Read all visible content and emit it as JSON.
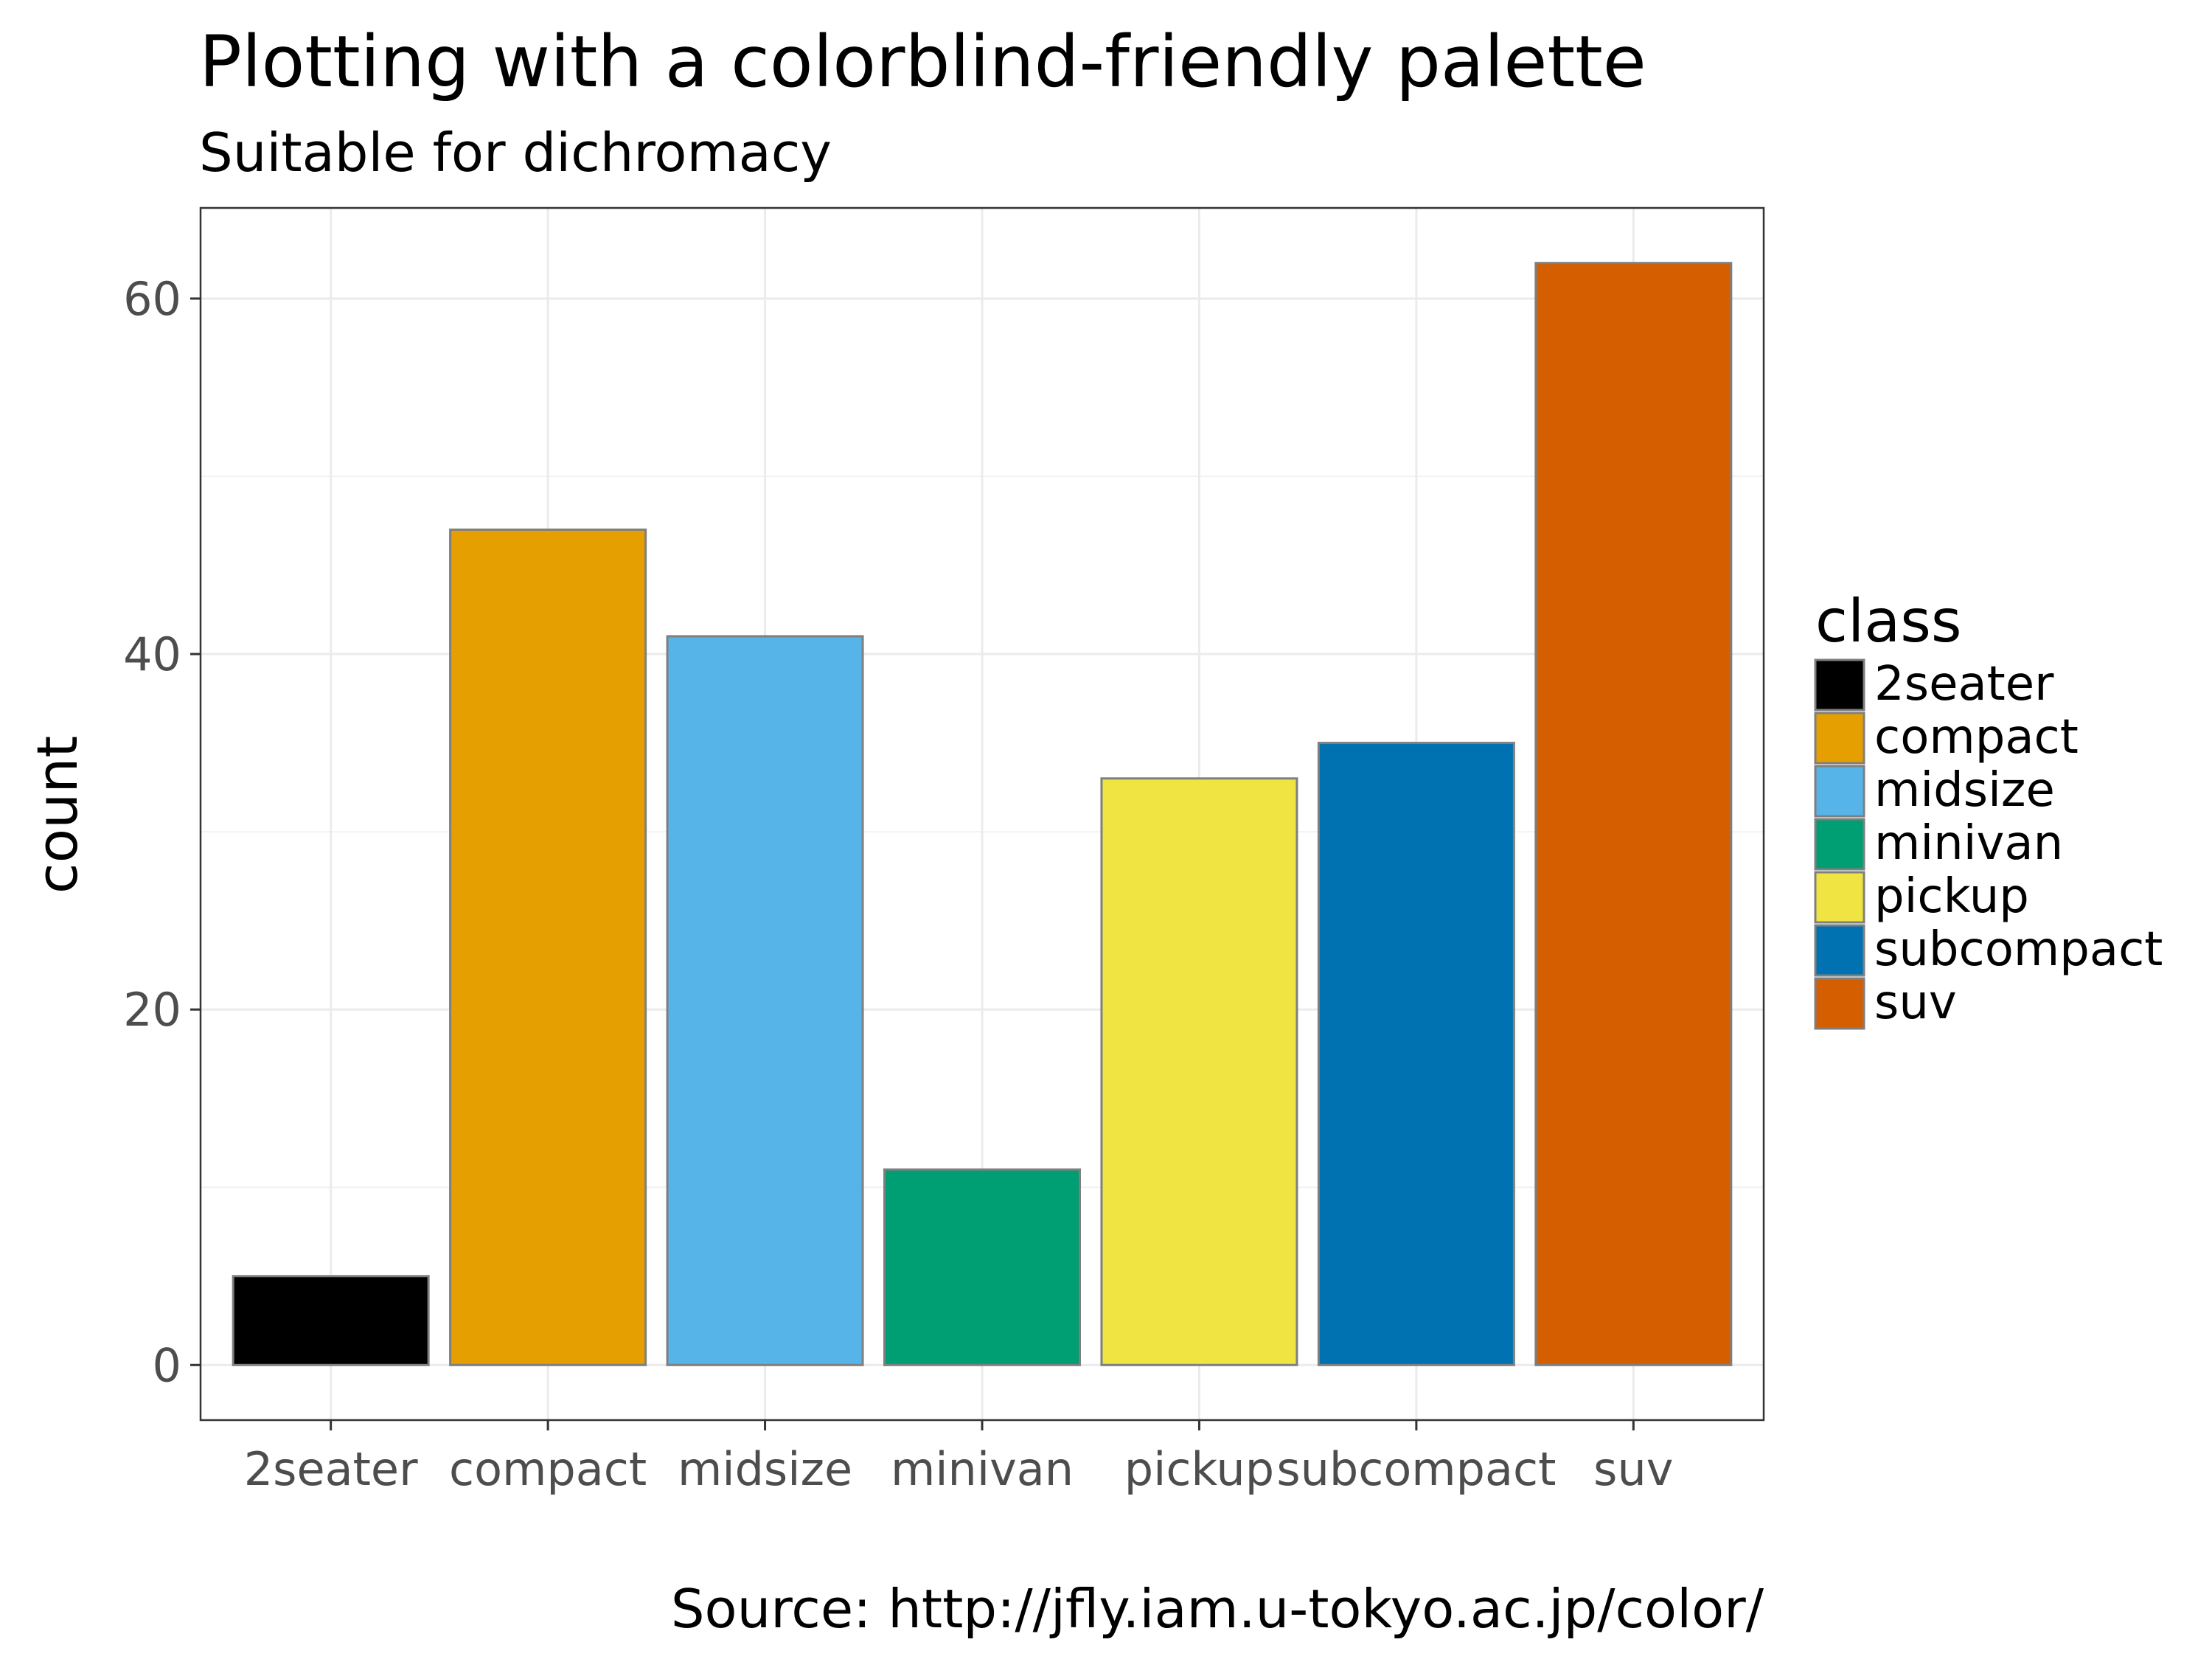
{
  "chart_data": {
    "type": "bar",
    "title": "Plotting with a colorblind-friendly palette",
    "subtitle": "Suitable for dichromacy",
    "caption": "Source: http://jfly.iam.u-tokyo.ac.jp/color/",
    "xlabel": "",
    "ylabel": "count",
    "categories": [
      "2seater",
      "compact",
      "midsize",
      "minivan",
      "pickup",
      "subcompact",
      "suv"
    ],
    "values": [
      5,
      47,
      41,
      11,
      33,
      35,
      62
    ],
    "colors": [
      "#000000",
      "#E69F00",
      "#56B4E9",
      "#009E73",
      "#F0E442",
      "#0072B2",
      "#D55E00"
    ],
    "yticks": [
      0,
      20,
      40,
      60
    ],
    "ylim": [
      -3.1,
      65.1
    ],
    "grid": true,
    "legend": {
      "title": "class",
      "position": "right",
      "entries": [
        "2seater",
        "compact",
        "midsize",
        "minivan",
        "pickup",
        "subcompact",
        "suv"
      ]
    }
  }
}
